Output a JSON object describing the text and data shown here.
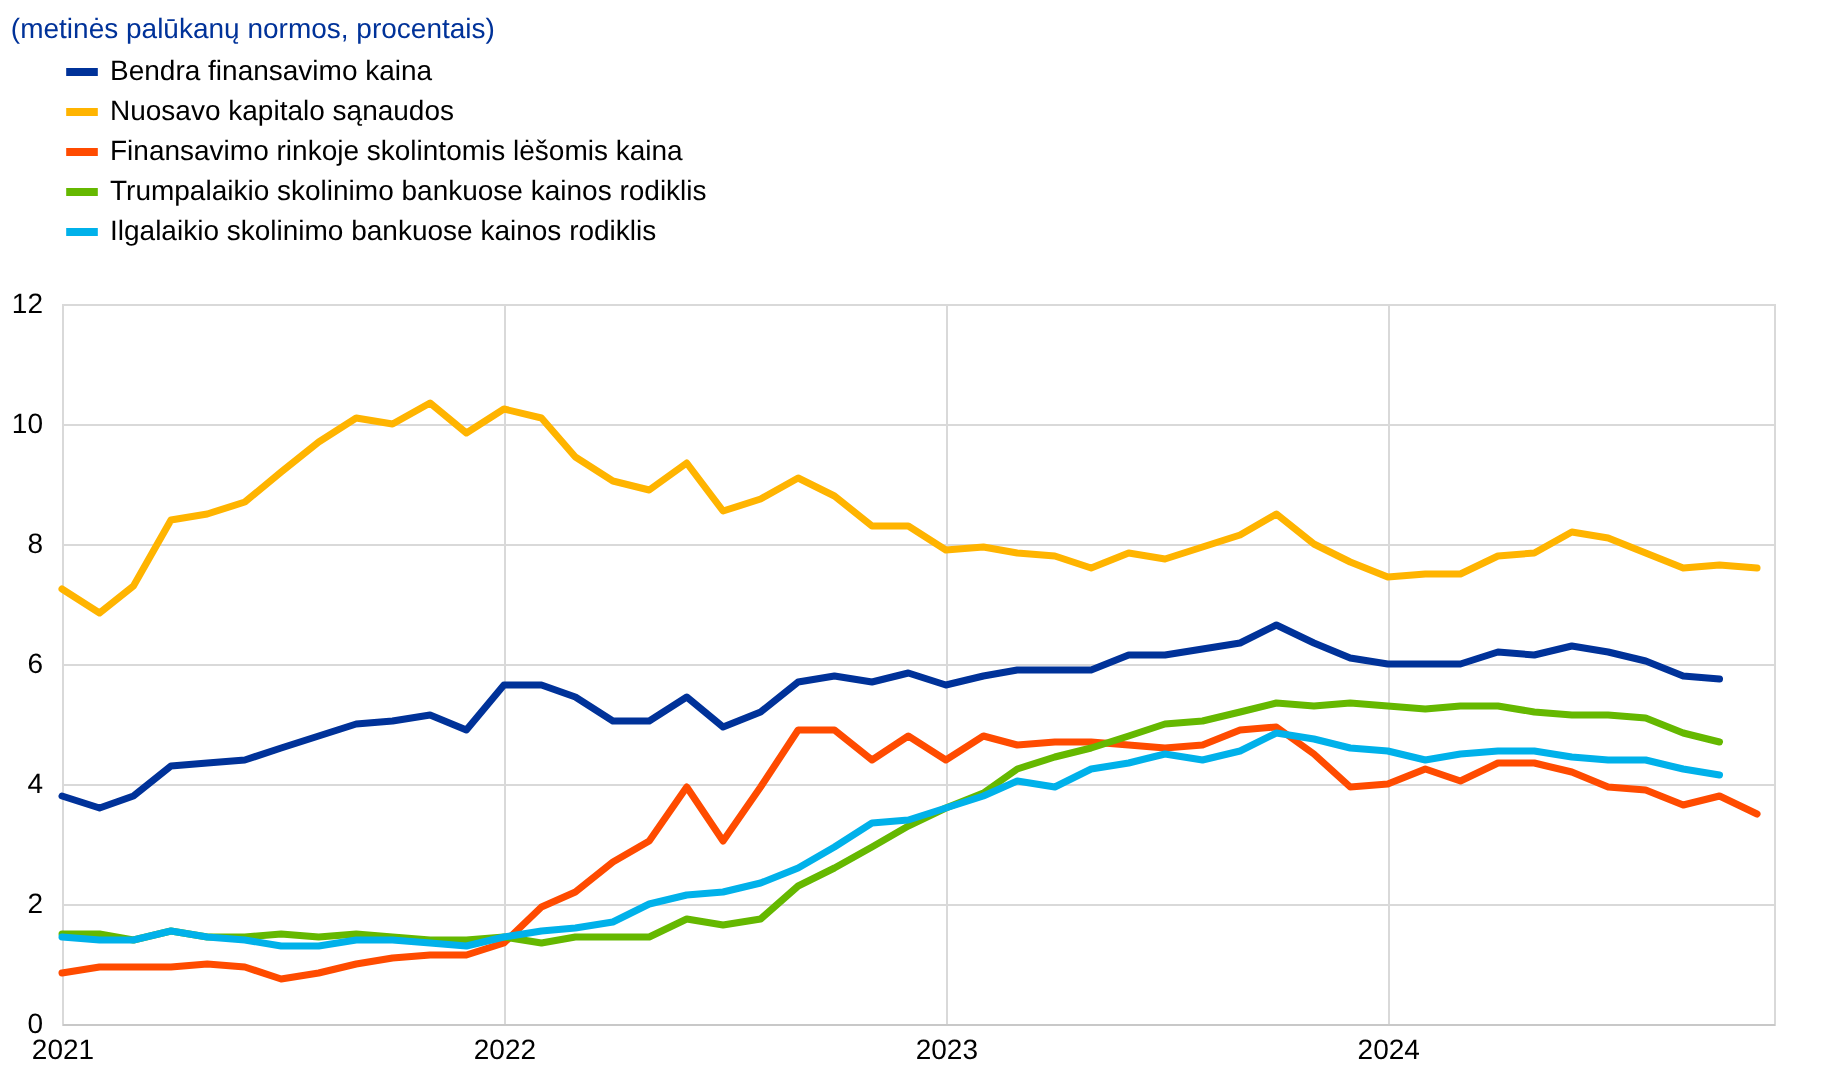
{
  "chart_data": {
    "type": "line",
    "title": "(metinės palūkanų normos, procentais)",
    "x": [
      "2021-01",
      "2021-02",
      "2021-03",
      "2021-04",
      "2021-05",
      "2021-06",
      "2021-07",
      "2021-08",
      "2021-09",
      "2021-10",
      "2021-11",
      "2021-12",
      "2022-01",
      "2022-02",
      "2022-03",
      "2022-04",
      "2022-05",
      "2022-06",
      "2022-07",
      "2022-08",
      "2022-09",
      "2022-10",
      "2022-11",
      "2022-12",
      "2023-01",
      "2023-02",
      "2023-03",
      "2023-04",
      "2023-05",
      "2023-06",
      "2023-07",
      "2023-08",
      "2023-09",
      "2023-10",
      "2023-11",
      "2023-12",
      "2024-01",
      "2024-02",
      "2024-03",
      "2024-04",
      "2024-05",
      "2024-06",
      "2024-07",
      "2024-08",
      "2024-09",
      "2024-10",
      "2024-11"
    ],
    "series": [
      {
        "name": "Bendra finansavimo kaina",
        "color": "#003299",
        "values": [
          3.8,
          3.6,
          3.8,
          4.3,
          4.35,
          4.4,
          4.6,
          4.8,
          5.0,
          5.05,
          5.15,
          4.9,
          5.65,
          5.65,
          5.45,
          5.05,
          5.05,
          5.45,
          4.95,
          5.2,
          5.7,
          5.8,
          5.7,
          5.85,
          5.65,
          5.8,
          5.9,
          5.9,
          5.9,
          6.15,
          6.15,
          6.25,
          6.35,
          6.65,
          6.35,
          6.1,
          6.0,
          6.0,
          6.0,
          6.2,
          6.15,
          6.3,
          6.2,
          6.05,
          5.8,
          5.75,
          null
        ]
      },
      {
        "name": "Nuosavo kapitalo sąnaudos",
        "color": "#ffb400",
        "values": [
          7.25,
          6.85,
          7.3,
          8.4,
          8.5,
          8.7,
          9.2,
          9.7,
          10.1,
          10.0,
          10.35,
          9.85,
          10.25,
          10.1,
          9.45,
          9.05,
          8.9,
          9.35,
          8.55,
          8.75,
          9.1,
          8.8,
          8.3,
          8.3,
          7.9,
          7.95,
          7.85,
          7.8,
          7.6,
          7.85,
          7.75,
          7.95,
          8.15,
          8.5,
          8.0,
          7.7,
          7.45,
          7.5,
          7.5,
          7.8,
          7.85,
          8.2,
          8.1,
          7.85,
          7.6,
          7.65,
          7.6
        ]
      },
      {
        "name": "Finansavimo rinkoje skolintomis lėšomis kaina",
        "color": "#ff4b00",
        "values": [
          0.85,
          0.95,
          0.95,
          0.95,
          1.0,
          0.95,
          0.75,
          0.85,
          1.0,
          1.1,
          1.15,
          1.15,
          1.35,
          1.95,
          2.2,
          2.7,
          3.05,
          3.95,
          3.05,
          3.95,
          4.9,
          4.9,
          4.4,
          4.8,
          4.4,
          4.8,
          4.65,
          4.7,
          4.7,
          4.65,
          4.6,
          4.65,
          4.9,
          4.95,
          4.5,
          3.95,
          4.0,
          4.25,
          4.05,
          4.35,
          4.35,
          4.2,
          3.95,
          3.9,
          3.65,
          3.8,
          3.5
        ]
      },
      {
        "name": "Trumpalaikio skolinimo bankuose kainos rodiklis",
        "color": "#65b800",
        "values": [
          1.5,
          1.5,
          1.4,
          1.55,
          1.45,
          1.45,
          1.5,
          1.45,
          1.5,
          1.45,
          1.4,
          1.4,
          1.45,
          1.35,
          1.45,
          1.45,
          1.45,
          1.75,
          1.65,
          1.75,
          2.3,
          2.6,
          2.95,
          3.3,
          3.6,
          3.85,
          4.25,
          4.45,
          4.6,
          4.8,
          5.0,
          5.05,
          5.2,
          5.35,
          5.3,
          5.35,
          5.3,
          5.25,
          5.3,
          5.3,
          5.2,
          5.15,
          5.15,
          5.1,
          4.85,
          4.7,
          null
        ]
      },
      {
        "name": "Ilgalaikio skolinimo bankuose kainos rodiklis",
        "color": "#00b1ea",
        "values": [
          1.45,
          1.4,
          1.4,
          1.55,
          1.45,
          1.4,
          1.3,
          1.3,
          1.4,
          1.4,
          1.35,
          1.3,
          1.45,
          1.55,
          1.6,
          1.7,
          2.0,
          2.15,
          2.2,
          2.35,
          2.6,
          2.95,
          3.35,
          3.4,
          3.6,
          3.8,
          4.05,
          3.95,
          4.25,
          4.35,
          4.5,
          4.4,
          4.55,
          4.85,
          4.75,
          4.6,
          4.55,
          4.4,
          4.5,
          4.55,
          4.55,
          4.45,
          4.4,
          4.4,
          4.25,
          4.15,
          null
        ]
      }
    ],
    "xlim": [
      "2021-01",
      "2024-11-15"
    ],
    "xticks": [
      "2021",
      "2022",
      "2023",
      "2024"
    ],
    "ylim": [
      0,
      12
    ],
    "yticks": [
      0,
      2,
      4,
      6,
      8,
      10,
      12
    ],
    "grid": true,
    "legend": "top left",
    "marker": "none",
    "line_style": "solid"
  }
}
